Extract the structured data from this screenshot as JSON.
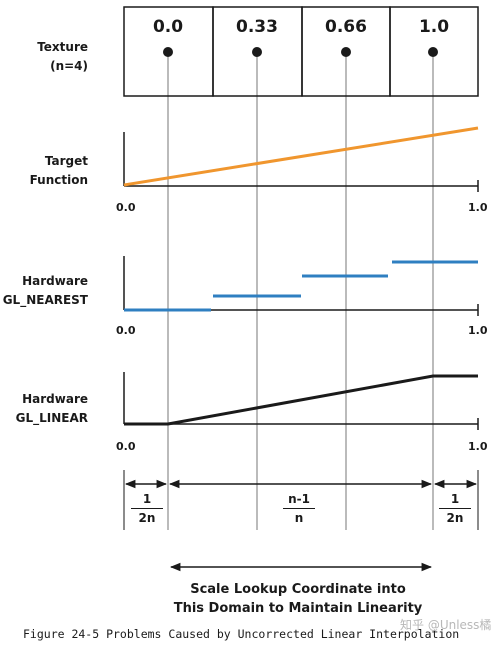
{
  "texture": {
    "label_line1": "Texture",
    "label_line2": "(n=4)",
    "cells": [
      "0.0",
      "0.33",
      "0.66",
      "1.0"
    ]
  },
  "rows": {
    "target": {
      "line1": "Target",
      "line2": "Function",
      "tick_start": "0.0",
      "tick_end": "1.0"
    },
    "nearest": {
      "line1": "Hardware",
      "line2": "GL_NEAREST",
      "tick_start": "0.0",
      "tick_end": "1.0"
    },
    "linear": {
      "line1": "Hardware",
      "line2": "GL_LINEAR",
      "tick_start": "0.0",
      "tick_end": "1.0"
    }
  },
  "fractions": {
    "left": {
      "num": "1",
      "den": "2n"
    },
    "middle": {
      "num": "n-1",
      "den": "n"
    },
    "right": {
      "num": "1",
      "den": "2n"
    }
  },
  "note": {
    "line1": "Scale Lookup Coordinate into",
    "line2": "This Domain to Maintain Linearity"
  },
  "caption": "Figure 24-5 Problems Caused by Uncorrected Linear Interpolation",
  "watermark": "知乎 @Unless橘",
  "colors": {
    "target_line": "#f0962e",
    "nearest_line": "#2f7fc1",
    "ink": "#1a1a1a",
    "guide": "#777777"
  }
}
